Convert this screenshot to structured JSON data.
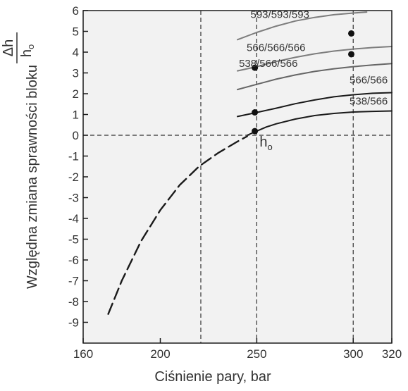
{
  "chart_data": {
    "type": "line",
    "xlabel": "Ciśnienie pary, bar",
    "ylabel": "Względna zmiana sprawności bloku",
    "ylabel_fraction": {
      "numerator": "Δh",
      "denominator": "h",
      "denominator_sub": "o"
    },
    "xlim": [
      160,
      320
    ],
    "ylim": [
      -10,
      6
    ],
    "x_ticks": [
      160,
      200,
      250,
      300,
      320
    ],
    "y_ticks": [
      6,
      5,
      4,
      3,
      2,
      1,
      0,
      -1,
      -2,
      -3,
      -4,
      -5,
      -6,
      -7,
      -8,
      -9
    ],
    "reference_lines": {
      "vertical": [
        221,
        250,
        300
      ],
      "horizontal": [
        0
      ]
    },
    "series": [
      {
        "name": "593/593/593",
        "style": "solid",
        "color": "#7d7d7d",
        "points": [
          [
            240,
            4.6
          ],
          [
            250,
            4.95
          ],
          [
            260,
            5.25
          ],
          [
            270,
            5.5
          ],
          [
            280,
            5.67
          ],
          [
            290,
            5.8
          ],
          [
            300,
            5.88
          ],
          [
            307,
            5.93
          ]
        ]
      },
      {
        "name": "566/566/566",
        "style": "solid",
        "color": "#7d7d7d",
        "points": [
          [
            240,
            3.1
          ],
          [
            250,
            3.3
          ],
          [
            260,
            3.55
          ],
          [
            270,
            3.75
          ],
          [
            280,
            3.92
          ],
          [
            290,
            4.05
          ],
          [
            300,
            4.15
          ],
          [
            310,
            4.22
          ],
          [
            320,
            4.27
          ]
        ]
      },
      {
        "name": "538/566/566",
        "style": "solid",
        "color": "#666666",
        "points": [
          [
            240,
            2.2
          ],
          [
            250,
            2.45
          ],
          [
            260,
            2.7
          ],
          [
            270,
            2.9
          ],
          [
            280,
            3.07
          ],
          [
            290,
            3.2
          ],
          [
            300,
            3.3
          ],
          [
            310,
            3.38
          ],
          [
            320,
            3.45
          ]
        ]
      },
      {
        "name": "566/566",
        "style": "solid",
        "color": "#1a1a1a",
        "points": [
          [
            240,
            0.9
          ],
          [
            250,
            1.1
          ],
          [
            260,
            1.3
          ],
          [
            270,
            1.52
          ],
          [
            280,
            1.7
          ],
          [
            290,
            1.85
          ],
          [
            300,
            1.95
          ],
          [
            310,
            2.02
          ],
          [
            320,
            2.05
          ]
        ]
      },
      {
        "name": "538/566",
        "style": "solid",
        "color": "#1a1a1a",
        "points": [
          [
            245,
            0.0
          ],
          [
            250,
            0.2
          ],
          [
            255,
            0.4
          ],
          [
            260,
            0.55
          ],
          [
            270,
            0.78
          ],
          [
            280,
            0.95
          ],
          [
            290,
            1.05
          ],
          [
            300,
            1.12
          ],
          [
            310,
            1.15
          ],
          [
            320,
            1.17
          ]
        ]
      },
      {
        "name": "",
        "style": "dashed",
        "color": "#1a1a1a",
        "points": [
          [
            173,
            -8.6
          ],
          [
            180,
            -7.0
          ],
          [
            190,
            -5.1
          ],
          [
            200,
            -3.6
          ],
          [
            210,
            -2.4
          ],
          [
            220,
            -1.5
          ],
          [
            230,
            -0.85
          ],
          [
            240,
            -0.3
          ],
          [
            245,
            -0.05
          ]
        ]
      }
    ],
    "markers": [
      [
        249,
        3.25
      ],
      [
        249,
        1.1
      ],
      [
        249,
        0.2
      ],
      [
        299,
        4.9
      ],
      [
        299,
        3.9
      ]
    ],
    "annotation": {
      "text": "h",
      "sub": "o",
      "x": 250,
      "y": 0.2
    },
    "grid": false,
    "legend": "none"
  }
}
